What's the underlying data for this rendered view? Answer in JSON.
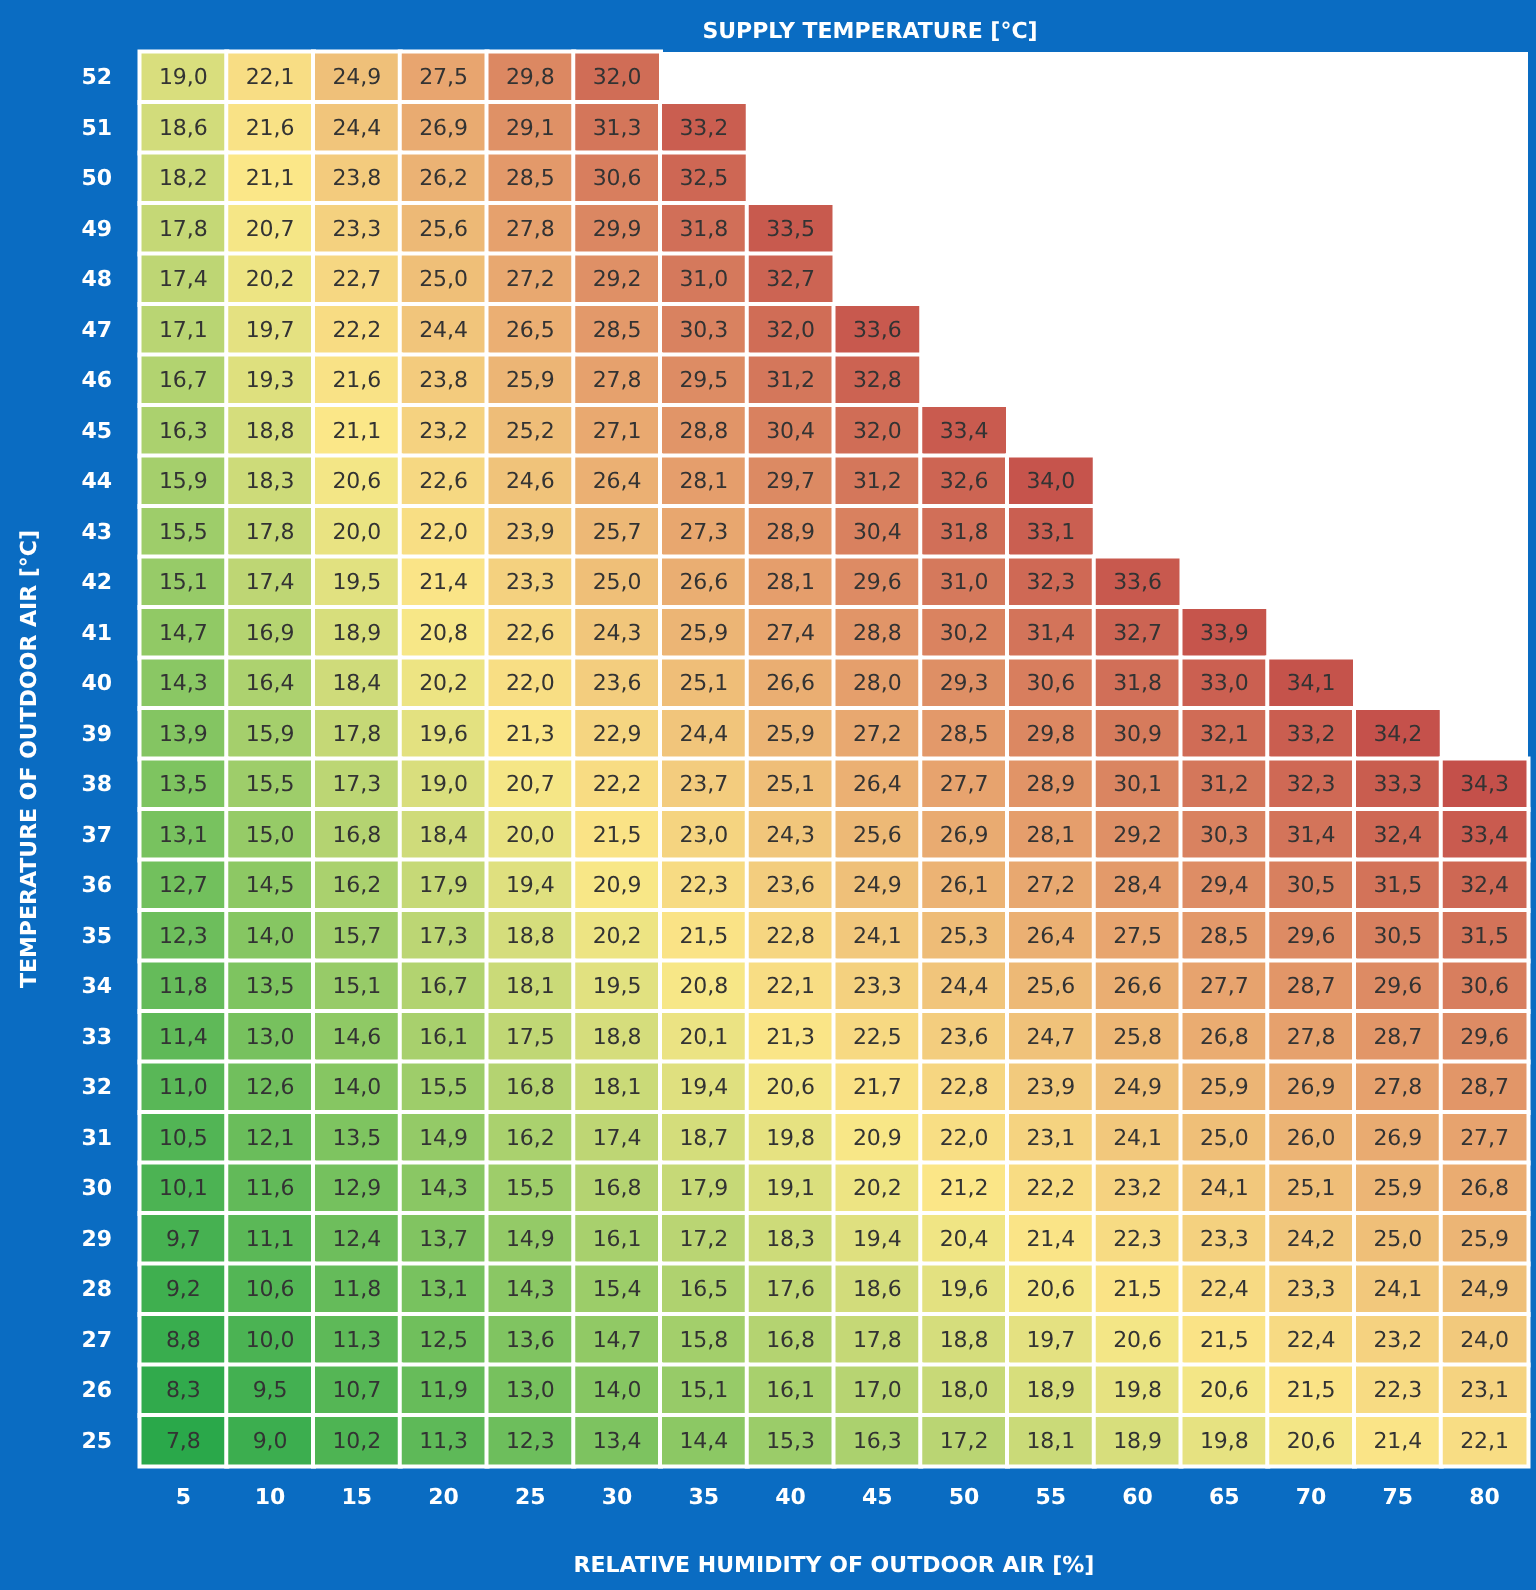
{
  "chart_data": {
    "type": "heatmap",
    "title": "SUPPLY TEMPERATURE [°C]",
    "xlabel": "RELATIVE HUMIDITY OF OUTDOOR AIR [%]",
    "ylabel": "TEMPERATURE OF OUTDOOR AIR [°C]",
    "categories": [
      "5",
      "10",
      "15",
      "20",
      "25",
      "30",
      "35",
      "40",
      "45",
      "50",
      "55",
      "60",
      "65",
      "70",
      "75",
      "80"
    ],
    "y_categories": [
      "52",
      "51",
      "50",
      "49",
      "48",
      "47",
      "46",
      "45",
      "44",
      "43",
      "42",
      "41",
      "40",
      "39",
      "38",
      "37",
      "36",
      "35",
      "34",
      "33",
      "32",
      "31",
      "30",
      "29",
      "28",
      "27",
      "26",
      "25"
    ],
    "cells": [
      [
        19.0,
        22.1,
        24.9,
        27.5,
        29.8,
        32.0,
        null,
        null,
        null,
        null,
        null,
        null,
        null,
        null,
        null,
        null
      ],
      [
        18.6,
        21.6,
        24.4,
        26.9,
        29.1,
        31.3,
        33.2,
        null,
        null,
        null,
        null,
        null,
        null,
        null,
        null,
        null
      ],
      [
        18.2,
        21.1,
        23.8,
        26.2,
        28.5,
        30.6,
        32.5,
        null,
        null,
        null,
        null,
        null,
        null,
        null,
        null,
        null
      ],
      [
        17.8,
        20.7,
        23.3,
        25.6,
        27.8,
        29.9,
        31.8,
        33.5,
        null,
        null,
        null,
        null,
        null,
        null,
        null,
        null
      ],
      [
        17.4,
        20.2,
        22.7,
        25.0,
        27.2,
        29.2,
        31.0,
        32.7,
        null,
        null,
        null,
        null,
        null,
        null,
        null,
        null
      ],
      [
        17.1,
        19.7,
        22.2,
        24.4,
        26.5,
        28.5,
        30.3,
        32.0,
        33.6,
        null,
        null,
        null,
        null,
        null,
        null,
        null
      ],
      [
        16.7,
        19.3,
        21.6,
        23.8,
        25.9,
        27.8,
        29.5,
        31.2,
        32.8,
        null,
        null,
        null,
        null,
        null,
        null,
        null
      ],
      [
        16.3,
        18.8,
        21.1,
        23.2,
        25.2,
        27.1,
        28.8,
        30.4,
        32.0,
        33.4,
        null,
        null,
        null,
        null,
        null,
        null
      ],
      [
        15.9,
        18.3,
        20.6,
        22.6,
        24.6,
        26.4,
        28.1,
        29.7,
        31.2,
        32.6,
        34.0,
        null,
        null,
        null,
        null,
        null
      ],
      [
        15.5,
        17.8,
        20.0,
        22.0,
        23.9,
        25.7,
        27.3,
        28.9,
        30.4,
        31.8,
        33.1,
        null,
        null,
        null,
        null,
        null
      ],
      [
        15.1,
        17.4,
        19.5,
        21.4,
        23.3,
        25.0,
        26.6,
        28.1,
        29.6,
        31.0,
        32.3,
        33.6,
        null,
        null,
        null,
        null
      ],
      [
        14.7,
        16.9,
        18.9,
        20.8,
        22.6,
        24.3,
        25.9,
        27.4,
        28.8,
        30.2,
        31.4,
        32.7,
        33.9,
        null,
        null,
        null
      ],
      [
        14.3,
        16.4,
        18.4,
        20.2,
        22.0,
        23.6,
        25.1,
        26.6,
        28.0,
        29.3,
        30.6,
        31.8,
        33.0,
        34.1,
        null,
        null
      ],
      [
        13.9,
        15.9,
        17.8,
        19.6,
        21.3,
        22.9,
        24.4,
        25.9,
        27.2,
        28.5,
        29.8,
        30.9,
        32.1,
        33.2,
        34.2,
        null
      ],
      [
        13.5,
        15.5,
        17.3,
        19.0,
        20.7,
        22.2,
        23.7,
        25.1,
        26.4,
        27.7,
        28.9,
        30.1,
        31.2,
        32.3,
        33.3,
        34.3
      ],
      [
        13.1,
        15.0,
        16.8,
        18.4,
        20.0,
        21.5,
        23.0,
        24.3,
        25.6,
        26.9,
        28.1,
        29.2,
        30.3,
        31.4,
        32.4,
        33.4
      ],
      [
        12.7,
        14.5,
        16.2,
        17.9,
        19.4,
        20.9,
        22.3,
        23.6,
        24.9,
        26.1,
        27.2,
        28.4,
        29.4,
        30.5,
        31.5,
        32.4
      ],
      [
        12.3,
        14.0,
        15.7,
        17.3,
        18.8,
        20.2,
        21.5,
        22.8,
        24.1,
        25.3,
        26.4,
        27.5,
        28.5,
        29.6,
        30.5,
        31.5
      ],
      [
        11.8,
        13.5,
        15.1,
        16.7,
        18.1,
        19.5,
        20.8,
        22.1,
        23.3,
        24.4,
        25.6,
        26.6,
        27.7,
        28.7,
        29.6,
        30.6
      ],
      [
        11.4,
        13.0,
        14.6,
        16.1,
        17.5,
        18.8,
        20.1,
        21.3,
        22.5,
        23.6,
        24.7,
        25.8,
        26.8,
        27.8,
        28.7,
        29.6
      ],
      [
        11.0,
        12.6,
        14.0,
        15.5,
        16.8,
        18.1,
        19.4,
        20.6,
        21.7,
        22.8,
        23.9,
        24.9,
        25.9,
        26.9,
        27.8,
        28.7
      ],
      [
        10.5,
        12.1,
        13.5,
        14.9,
        16.2,
        17.4,
        18.7,
        19.8,
        20.9,
        22.0,
        23.1,
        24.1,
        25.0,
        26.0,
        26.9,
        27.7
      ],
      [
        10.1,
        11.6,
        12.9,
        14.3,
        15.5,
        16.8,
        17.9,
        19.1,
        20.2,
        21.2,
        22.2,
        23.2,
        24.1,
        25.1,
        25.9,
        26.8
      ],
      [
        9.7,
        11.1,
        12.4,
        13.7,
        14.9,
        16.1,
        17.2,
        18.3,
        19.4,
        20.4,
        21.4,
        22.3,
        23.3,
        24.2,
        25.0,
        25.9
      ],
      [
        9.2,
        10.6,
        11.8,
        13.1,
        14.3,
        15.4,
        16.5,
        17.6,
        18.6,
        19.6,
        20.6,
        21.5,
        22.4,
        23.3,
        24.1,
        24.9
      ],
      [
        8.8,
        10.0,
        11.3,
        12.5,
        13.6,
        14.7,
        15.8,
        16.8,
        17.8,
        18.8,
        19.7,
        20.6,
        21.5,
        22.4,
        23.2,
        24.0
      ],
      [
        8.3,
        9.5,
        10.7,
        11.9,
        13.0,
        14.0,
        15.1,
        16.1,
        17.0,
        18.0,
        18.9,
        19.8,
        20.6,
        21.5,
        22.3,
        23.1
      ],
      [
        7.8,
        9.0,
        10.2,
        11.3,
        12.3,
        13.4,
        14.4,
        15.3,
        16.3,
        17.2,
        18.1,
        18.9,
        19.8,
        20.6,
        21.4,
        22.1
      ]
    ],
    "cell_labels": [
      [
        "19,0",
        "22,1",
        "24,9",
        "27,5",
        "29,8",
        "32,0",
        null,
        null,
        null,
        null,
        null,
        null,
        null,
        null,
        null,
        null
      ],
      [
        "18,6",
        "21,6",
        "24,4",
        "26,9",
        "29,1",
        "31,3",
        "33,2",
        null,
        null,
        null,
        null,
        null,
        null,
        null,
        null,
        null
      ],
      [
        "18,2",
        "21,1",
        "23,8",
        "26,2",
        "28,5",
        "30,6",
        "32,5",
        null,
        null,
        null,
        null,
        null,
        null,
        null,
        null,
        null
      ],
      [
        "17,8",
        "20,7",
        "23,3",
        "25,6",
        "27,8",
        "29,9",
        "31,8",
        "33,5",
        null,
        null,
        null,
        null,
        null,
        null,
        null,
        null
      ],
      [
        "17,4",
        "20,2",
        "22,7",
        "25,0",
        "27,2",
        "29,2",
        "31,0",
        "32,7",
        null,
        null,
        null,
        null,
        null,
        null,
        null,
        null
      ],
      [
        "17,1",
        "19,7",
        "22,2",
        "24,4",
        "26,5",
        "28,5",
        "30,3",
        "32,0",
        "33,6",
        null,
        null,
        null,
        null,
        null,
        null,
        null
      ],
      [
        "16,7",
        "19,3",
        "21,6",
        "23,8",
        "25,9",
        "27,8",
        "29,5",
        "31,2",
        "32,8",
        null,
        null,
        null,
        null,
        null,
        null,
        null
      ],
      [
        "16,3",
        "18,8",
        "21,1",
        "23,2",
        "25,2",
        "27,1",
        "28,8",
        "30,4",
        "32,0",
        "33,4",
        null,
        null,
        null,
        null,
        null,
        null
      ],
      [
        "15,9",
        "18,3",
        "20,6",
        "22,6",
        "24,6",
        "26,4",
        "28,1",
        "29,7",
        "31,2",
        "32,6",
        "34,0",
        null,
        null,
        null,
        null,
        null
      ],
      [
        "15,5",
        "17,8",
        "20,0",
        "22,0",
        "23,9",
        "25,7",
        "27,3",
        "28,9",
        "30,4",
        "31,8",
        "33,1",
        null,
        null,
        null,
        null,
        null
      ],
      [
        "15,1",
        "17,4",
        "19,5",
        "21,4",
        "23,3",
        "25,0",
        "26,6",
        "28,1",
        "29,6",
        "31,0",
        "32,3",
        "33,6",
        null,
        null,
        null,
        null
      ],
      [
        "14,7",
        "16,9",
        "18,9",
        "20,8",
        "22,6",
        "24,3",
        "25,9",
        "27,4",
        "28,8",
        "30,2",
        "31,4",
        "32,7",
        "33,9",
        null,
        null,
        null
      ],
      [
        "14,3",
        "16,4",
        "18,4",
        "20,2",
        "22,0",
        "23,6",
        "25,1",
        "26,6",
        "28,0",
        "29,3",
        "30,6",
        "31,8",
        "33,0",
        "34,1",
        null,
        null
      ],
      [
        "13,9",
        "15,9",
        "17,8",
        "19,6",
        "21,3",
        "22,9",
        "24,4",
        "25,9",
        "27,2",
        "28,5",
        "29,8",
        "30,9",
        "32,1",
        "33,2",
        "34,2",
        null
      ],
      [
        "13,5",
        "15,5",
        "17,3",
        "19,0",
        "20,7",
        "22,2",
        "23,7",
        "25,1",
        "26,4",
        "27,7",
        "28,9",
        "30,1",
        "31,2",
        "32,3",
        "33,3",
        "34,3"
      ],
      [
        "13,1",
        "15,0",
        "16,8",
        "18,4",
        "20,0",
        "21,5",
        "23,0",
        "24,3",
        "25,6",
        "26,9",
        "28,1",
        "29,2",
        "30,3",
        "31,4",
        "32,4",
        "33,4"
      ],
      [
        "12,7",
        "14,5",
        "16,2",
        "17,9",
        "19,4",
        "20,9",
        "22,3",
        "23,6",
        "24,9",
        "26,1",
        "27,2",
        "28,4",
        "29,4",
        "30,5",
        "31,5",
        "32,4"
      ],
      [
        "12,3",
        "14,0",
        "15,7",
        "17,3",
        "18,8",
        "20,2",
        "21,5",
        "22,8",
        "24,1",
        "25,3",
        "26,4",
        "27,5",
        "28,5",
        "29,6",
        "30,5",
        "31,5"
      ],
      [
        "11,8",
        "13,5",
        "15,1",
        "16,7",
        "18,1",
        "19,5",
        "20,8",
        "22,1",
        "23,3",
        "24,4",
        "25,6",
        "26,6",
        "27,7",
        "28,7",
        "29,6",
        "30,6"
      ],
      [
        "11,4",
        "13,0",
        "14,6",
        "16,1",
        "17,5",
        "18,8",
        "20,1",
        "21,3",
        "22,5",
        "23,6",
        "24,7",
        "25,8",
        "26,8",
        "27,8",
        "28,7",
        "29,6"
      ],
      [
        "11,0",
        "12,6",
        "14,0",
        "15,5",
        "16,8",
        "18,1",
        "19,4",
        "20,6",
        "21,7",
        "22,8",
        "23,9",
        "24,9",
        "25,9",
        "26,9",
        "27,8",
        "28,7"
      ],
      [
        "10,5",
        "12,1",
        "13,5",
        "14,9",
        "16,2",
        "17,4",
        "18,7",
        "19,8",
        "20,9",
        "22,0",
        "23,1",
        "24,1",
        "25,0",
        "26,0",
        "26,9",
        "27,7"
      ],
      [
        "10,1",
        "11,6",
        "12,9",
        "14,3",
        "15,5",
        "16,8",
        "17,9",
        "19,1",
        "20,2",
        "21,2",
        "22,2",
        "23,2",
        "24,1",
        "25,1",
        "25,9",
        "26,8"
      ],
      [
        "9,7",
        "11,1",
        "12,4",
        "13,7",
        "14,9",
        "16,1",
        "17,2",
        "18,3",
        "19,4",
        "20,4",
        "21,4",
        "22,3",
        "23,3",
        "24,2",
        "25,0",
        "25,9"
      ],
      [
        "9,2",
        "10,6",
        "11,8",
        "13,1",
        "14,3",
        "15,4",
        "16,5",
        "17,6",
        "18,6",
        "19,6",
        "20,6",
        "21,5",
        "22,4",
        "23,3",
        "24,1",
        "24,9"
      ],
      [
        "8,8",
        "10,0",
        "11,3",
        "12,5",
        "13,6",
        "14,7",
        "15,8",
        "16,8",
        "17,8",
        "18,8",
        "19,7",
        "20,6",
        "21,5",
        "22,4",
        "23,2",
        "24,0"
      ],
      [
        "8,3",
        "9,5",
        "10,7",
        "11,9",
        "13,0",
        "14,0",
        "15,1",
        "16,1",
        "17,0",
        "18,0",
        "18,9",
        "19,8",
        "20,6",
        "21,5",
        "22,3",
        "23,1"
      ],
      [
        "7,8",
        "9,0",
        "10,2",
        "11,3",
        "12,3",
        "13,4",
        "14,4",
        "15,3",
        "16,3",
        "17,2",
        "18,1",
        "18,9",
        "19,8",
        "20,6",
        "21,4",
        "22,1"
      ]
    ]
  }
}
